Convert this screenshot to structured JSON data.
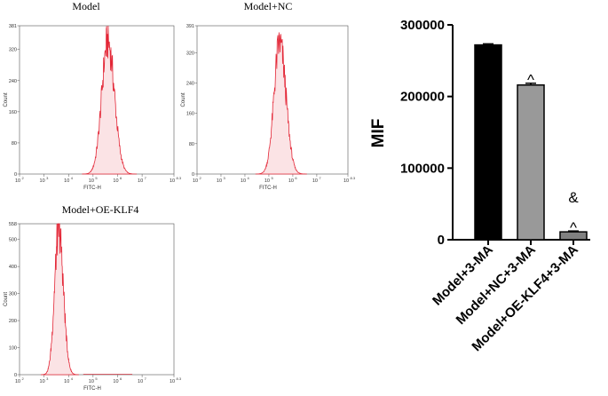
{
  "chart_data": [
    {
      "type": "area",
      "title": "Model",
      "xlabel": "FITC-H",
      "ylabel": "Count",
      "x_scale": "log",
      "x_ticks": [
        {
          "base": "10",
          "exp": "2"
        },
        {
          "base": "10",
          "exp": "3"
        },
        {
          "base": "10",
          "exp": "4"
        },
        {
          "base": "10",
          "exp": "5"
        },
        {
          "base": "10",
          "exp": "6"
        },
        {
          "base": "10",
          "exp": "7"
        },
        {
          "base": "10",
          "exp": "8.3"
        }
      ],
      "y_ticks": [
        "0",
        "80",
        "160",
        "240",
        "320",
        "381"
      ],
      "ylim": [
        0,
        381
      ],
      "peak_log_x": 5.6,
      "peak_count": 340,
      "width_log": 0.26,
      "color": "#e32636"
    },
    {
      "type": "area",
      "title": "Model+NC",
      "xlabel": "FITC-H",
      "ylabel": "Count",
      "x_scale": "log",
      "x_ticks": [
        {
          "base": "10",
          "exp": "2"
        },
        {
          "base": "10",
          "exp": "3"
        },
        {
          "base": "10",
          "exp": "4"
        },
        {
          "base": "10",
          "exp": "5"
        },
        {
          "base": "10",
          "exp": "6"
        },
        {
          "base": "10",
          "exp": "7"
        },
        {
          "base": "10",
          "exp": "8.3"
        }
      ],
      "y_ticks": [
        "0",
        "80",
        "160",
        "240",
        "320",
        "391"
      ],
      "ylim": [
        0,
        391
      ],
      "peak_log_x": 5.45,
      "peak_count": 345,
      "width_log": 0.25,
      "color": "#e32636"
    },
    {
      "type": "area",
      "title": "Model+OE-KLF4",
      "xlabel": "FITC-H",
      "ylabel": "Count",
      "x_scale": "log",
      "x_ticks": [
        {
          "base": "10",
          "exp": "2"
        },
        {
          "base": "10",
          "exp": "3"
        },
        {
          "base": "10",
          "exp": "4"
        },
        {
          "base": "10",
          "exp": "5"
        },
        {
          "base": "10",
          "exp": "6"
        },
        {
          "base": "10",
          "exp": "7"
        },
        {
          "base": "10",
          "exp": "8.3"
        }
      ],
      "y_ticks": [
        "0",
        "100",
        "200",
        "300",
        "400",
        "500",
        "558"
      ],
      "ylim": [
        0,
        558
      ],
      "peak_log_x": 3.6,
      "peak_count": 535,
      "width_log": 0.18,
      "color": "#e32636"
    },
    {
      "type": "bar",
      "categories": [
        "Model+3-MA",
        "Model+NC+3-MA",
        "Model+OE-KLF4+3-MA"
      ],
      "values": [
        272000,
        216000,
        11000
      ],
      "errors": [
        1500,
        2500,
        1200
      ],
      "colors": [
        "#000000",
        "#999999",
        "#808080"
      ],
      "ylabel": "MIF",
      "ylim": [
        0,
        300000
      ],
      "y_ticks": [
        "0",
        "100000",
        "200000",
        "300000"
      ],
      "annotations": [
        "",
        "^",
        "&\n^"
      ]
    }
  ]
}
